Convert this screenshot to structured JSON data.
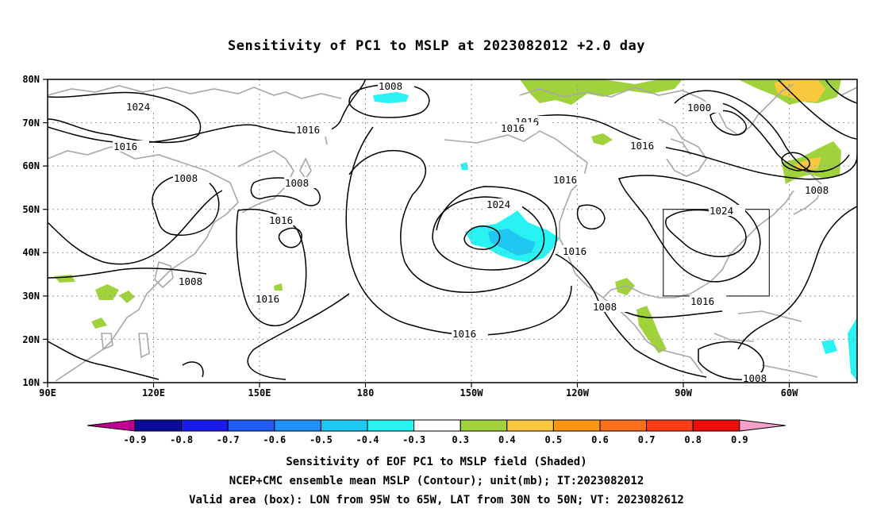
{
  "title": "Sensitivity of PC1 to MSLP at 2023082012 +2.0 day",
  "lat_labels": [
    "80N",
    "70N",
    "60N",
    "50N",
    "40N",
    "30N",
    "20N",
    "10N"
  ],
  "lon_labels": [
    "90E",
    "120E",
    "150E",
    "180",
    "150W",
    "120W",
    "90W",
    "60W"
  ],
  "contour_labels": {
    "c1008_top": "1008",
    "c1024_nw": "1024",
    "c1016_a": "1016",
    "c1016_b": "1016",
    "c1000": "1000",
    "c1016_c": "1016",
    "c1016_d": "1016",
    "c1016_e": "1016",
    "c1008_w": "1008",
    "c1008_mid": "1008",
    "c1016_f": "1016",
    "c1024_c": "1024",
    "c1016_g": "1016",
    "c1024_e": "1024",
    "c1008_e": "1008",
    "c1016_h": "1016",
    "c1008_sw": "1008",
    "c1016_i": "1016",
    "c1008_s": "1008",
    "c1016_j": "1016",
    "c1016_k": "1016",
    "c1008_se": "1008"
  },
  "colorbar": {
    "labels": [
      "-0.9",
      "-0.8",
      "-0.7",
      "-0.6",
      "-0.5",
      "-0.4",
      "-0.3",
      "0.3",
      "0.4",
      "0.5",
      "0.6",
      "0.7",
      "0.8",
      "0.9"
    ],
    "colors": [
      "#c00090",
      "#0c0c9c",
      "#1a1aee",
      "#1f5af2",
      "#1e90ff",
      "#1ec8f2",
      "#28f2f2",
      "#ffffff",
      "#a0d23c",
      "#fac83c",
      "#fa9614",
      "#fa6e1e",
      "#ff3c14",
      "#f00a0a",
      "#f5a0c8"
    ]
  },
  "caption": {
    "line1": "Sensitivity of EOF PC1 to MSLP field (Shaded)",
    "line2": "NCEP+CMC ensemble mean MSLP (Contour); unit(mb); IT:2023082012",
    "line3": "Valid area (box): LON from 95W to 65W, LAT from 30N to 50N; VT: 2023082612"
  }
}
